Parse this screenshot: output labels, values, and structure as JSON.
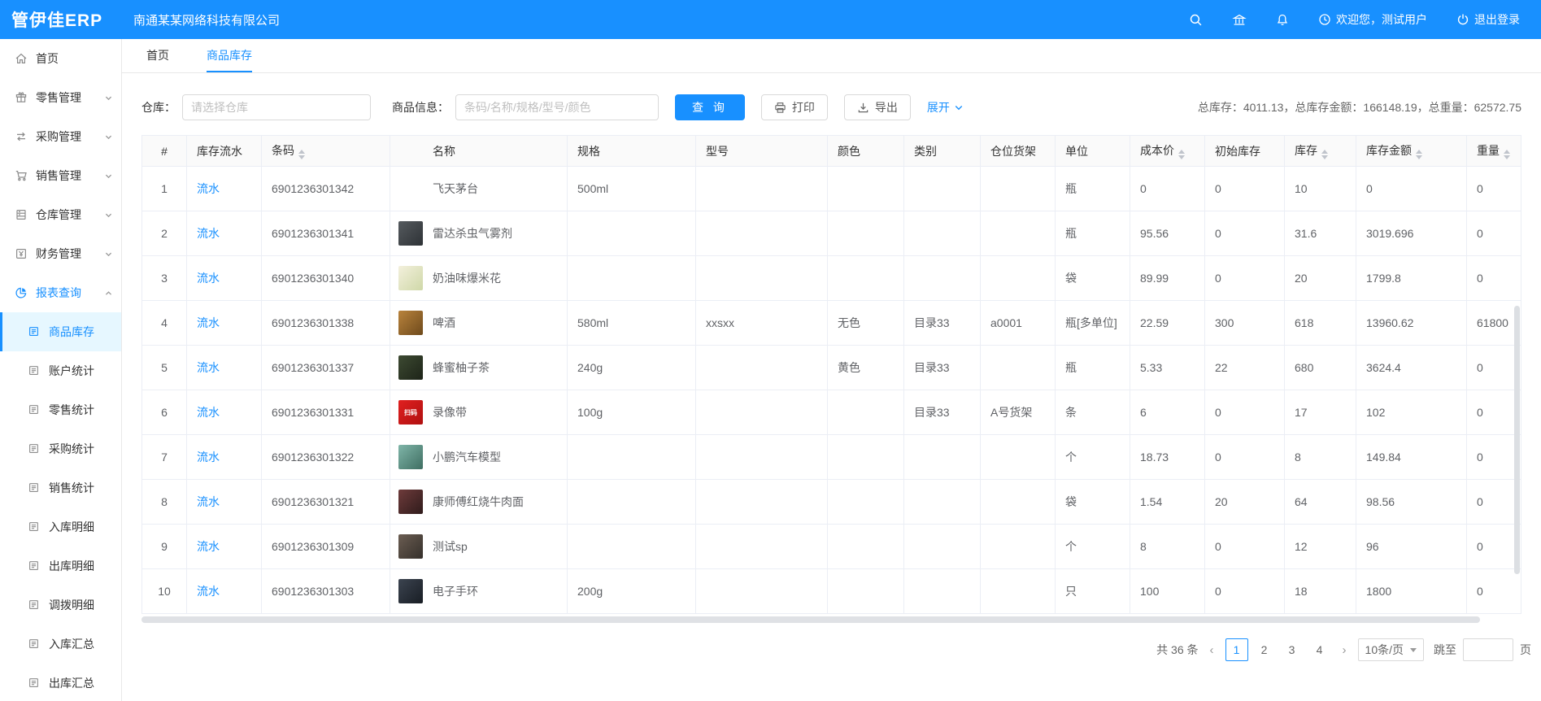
{
  "header": {
    "logo": "管伊佳ERP",
    "company": "南通某某网络科技有限公司",
    "welcome": "欢迎您，测试用户",
    "logout": "退出登录"
  },
  "tabs": [
    {
      "label": "首页",
      "active": false
    },
    {
      "label": "商品库存",
      "active": true
    }
  ],
  "sidebar": {
    "items": [
      {
        "icon": "home",
        "label": "首页"
      },
      {
        "icon": "retail",
        "label": "零售管理",
        "arrow": "down"
      },
      {
        "icon": "purchase",
        "label": "采购管理",
        "arrow": "down"
      },
      {
        "icon": "sales",
        "label": "销售管理",
        "arrow": "down"
      },
      {
        "icon": "warehouse",
        "label": "仓库管理",
        "arrow": "down"
      },
      {
        "icon": "finance",
        "label": "财务管理",
        "arrow": "down"
      },
      {
        "icon": "report",
        "label": "报表查询",
        "arrow": "up",
        "parent_active": true
      },
      {
        "icon": "doc",
        "label": "商品库存",
        "indent": true,
        "active": true
      },
      {
        "icon": "doc",
        "label": "账户统计",
        "indent": true
      },
      {
        "icon": "doc",
        "label": "零售统计",
        "indent": true
      },
      {
        "icon": "doc",
        "label": "采购统计",
        "indent": true
      },
      {
        "icon": "doc",
        "label": "销售统计",
        "indent": true
      },
      {
        "icon": "doc",
        "label": "入库明细",
        "indent": true
      },
      {
        "icon": "doc",
        "label": "出库明细",
        "indent": true
      },
      {
        "icon": "doc",
        "label": "调拨明细",
        "indent": true
      },
      {
        "icon": "doc",
        "label": "入库汇总",
        "indent": true
      },
      {
        "icon": "doc",
        "label": "出库汇总",
        "indent": true
      }
    ]
  },
  "filters": {
    "warehouse_label": "仓库：",
    "warehouse_placeholder": "请选择仓库",
    "product_label": "商品信息：",
    "product_placeholder": "条码/名称/规格/型号/颜色",
    "search_label": "查 询",
    "print_label": "打印",
    "export_label": "导出",
    "expand_label": "展开"
  },
  "summary_parts": [
    {
      "label": "总库存",
      "value": "4011.13"
    },
    {
      "label": "总库存金额",
      "value": "166148.19"
    },
    {
      "label": "总重量",
      "value": "62572.75"
    }
  ],
  "table": {
    "columns": [
      {
        "label": "#",
        "sort": false
      },
      {
        "label": "库存流水",
        "sort": false
      },
      {
        "label": "条码",
        "sort": true
      },
      {
        "label": "名称",
        "sort": false
      },
      {
        "label": "规格",
        "sort": false
      },
      {
        "label": "型号",
        "sort": false
      },
      {
        "label": "颜色",
        "sort": false
      },
      {
        "label": "类别",
        "sort": false
      },
      {
        "label": "仓位货架",
        "sort": false
      },
      {
        "label": "单位",
        "sort": false
      },
      {
        "label": "成本价",
        "sort": true
      },
      {
        "label": "初始库存",
        "sort": false
      },
      {
        "label": "库存",
        "sort": true
      },
      {
        "label": "库存金额",
        "sort": true
      },
      {
        "label": "重量",
        "sort": true
      }
    ],
    "flow_label": "流水",
    "rows": [
      {
        "index": "1",
        "barcode": "6901236301342",
        "name": "飞天茅台",
        "thumb": null,
        "spec": "500ml",
        "model": "",
        "color": "",
        "category": "",
        "shelf": "",
        "unit": "瓶",
        "cost": "0",
        "init": "0",
        "stock": "10",
        "amount": "0",
        "weight": "0"
      },
      {
        "index": "2",
        "barcode": "6901236301341",
        "name": "雷达杀虫气雾剂",
        "thumb": {
          "colors": [
            "#555a5e",
            "#2e3236"
          ],
          "text": ""
        },
        "spec": "",
        "model": "",
        "color": "",
        "category": "",
        "shelf": "",
        "unit": "瓶",
        "cost": "95.56",
        "init": "0",
        "stock": "31.6",
        "amount": "3019.696",
        "weight": "0"
      },
      {
        "index": "3",
        "barcode": "6901236301340",
        "name": "奶油味爆米花",
        "thumb": {
          "colors": [
            "#f3f0dc",
            "#cfd8a8"
          ],
          "text": ""
        },
        "spec": "",
        "model": "",
        "color": "",
        "category": "",
        "shelf": "",
        "unit": "袋",
        "cost": "89.99",
        "init": "0",
        "stock": "20",
        "amount": "1799.8",
        "weight": "0"
      },
      {
        "index": "4",
        "barcode": "6901236301338",
        "name": "啤酒",
        "thumb": {
          "colors": [
            "#b9833c",
            "#6e4a1c"
          ],
          "text": ""
        },
        "spec": "580ml",
        "model": "xxsxx",
        "color": "无色",
        "category": "目录33",
        "shelf": "a0001",
        "unit": "瓶[多单位]",
        "cost": "22.59",
        "init": "300",
        "stock": "618",
        "amount": "13960.62",
        "weight": "61800"
      },
      {
        "index": "5",
        "barcode": "6901236301337",
        "name": "蜂蜜柚子茶",
        "thumb": {
          "colors": [
            "#3d4a32",
            "#1d2418"
          ],
          "text": ""
        },
        "spec": "240g",
        "model": "",
        "color": "黄色",
        "category": "目录33",
        "shelf": "",
        "unit": "瓶",
        "cost": "5.33",
        "init": "22",
        "stock": "680",
        "amount": "3624.4",
        "weight": "0"
      },
      {
        "index": "6",
        "barcode": "6901236301331",
        "name": "录像带",
        "thumb": {
          "colors": [
            "#e02020",
            "#b01010"
          ],
          "text": "扫码"
        },
        "spec": "100g",
        "model": "",
        "color": "",
        "category": "目录33",
        "shelf": "A号货架",
        "unit": "条",
        "cost": "6",
        "init": "0",
        "stock": "17",
        "amount": "102",
        "weight": "0"
      },
      {
        "index": "7",
        "barcode": "6901236301322",
        "name": "小鹏汽车模型",
        "thumb": {
          "colors": [
            "#7fb5a8",
            "#3f6e62"
          ],
          "text": ""
        },
        "spec": "",
        "model": "",
        "color": "",
        "category": "",
        "shelf": "",
        "unit": "个",
        "cost": "18.73",
        "init": "0",
        "stock": "8",
        "amount": "149.84",
        "weight": "0"
      },
      {
        "index": "8",
        "barcode": "6901236301321",
        "name": "康师傅红烧牛肉面",
        "thumb": {
          "colors": [
            "#6e3b3b",
            "#2f1b1b"
          ],
          "text": ""
        },
        "spec": "",
        "model": "",
        "color": "",
        "category": "",
        "shelf": "",
        "unit": "袋",
        "cost": "1.54",
        "init": "20",
        "stock": "64",
        "amount": "98.56",
        "weight": "0"
      },
      {
        "index": "9",
        "barcode": "6901236301309",
        "name": "测试sp",
        "thumb": {
          "colors": [
            "#6b5d52",
            "#35302b"
          ],
          "text": ""
        },
        "spec": "",
        "model": "",
        "color": "",
        "category": "",
        "shelf": "",
        "unit": "个",
        "cost": "8",
        "init": "0",
        "stock": "12",
        "amount": "96",
        "weight": "0"
      },
      {
        "index": "10",
        "barcode": "6901236301303",
        "name": "电子手环",
        "thumb": {
          "colors": [
            "#3c4450",
            "#181d24"
          ],
          "text": ""
        },
        "spec": "200g",
        "model": "",
        "color": "",
        "category": "",
        "shelf": "",
        "unit": "只",
        "cost": "100",
        "init": "0",
        "stock": "18",
        "amount": "1800",
        "weight": "0"
      }
    ]
  },
  "pagination": {
    "total_label": "共 36 条",
    "pages": [
      "1",
      "2",
      "3",
      "4"
    ],
    "active_page": "1",
    "page_size": "10条/页",
    "jump_label": "跳至",
    "jump_suffix": "页"
  },
  "colors": {
    "primary": "#1890ff",
    "active_menu_bg": "#e6f7ff",
    "table_header_bg": "#fafafa",
    "border": "#ebeef5"
  }
}
